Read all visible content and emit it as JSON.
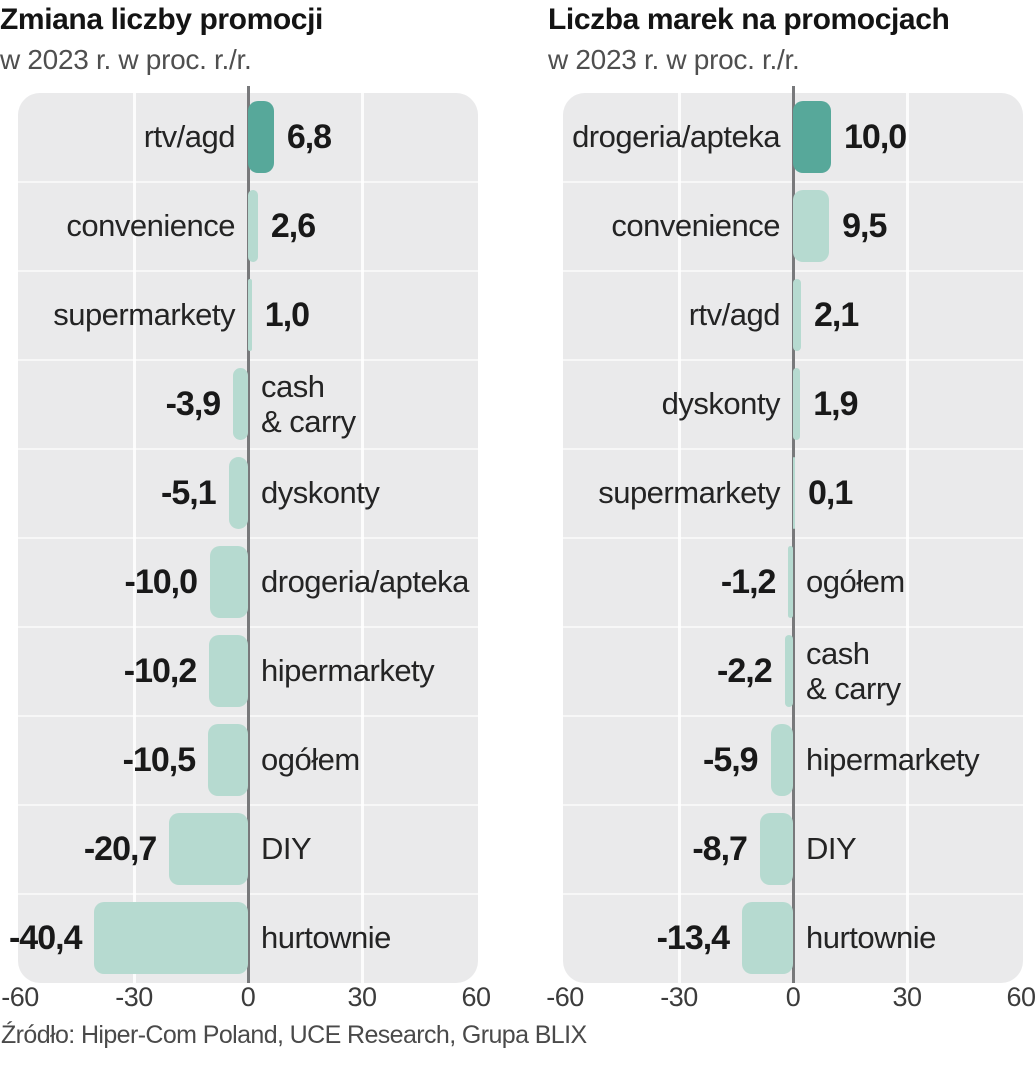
{
  "source_note": "Źródło: Hiper-Com Poland, UCE Research, Grupa BLIX",
  "colors": {
    "bar_highlight": "#57a89a",
    "bar_default": "#b6dad0",
    "plot_background": "#eaeaeb",
    "zero_line": "#78797b"
  },
  "chart_data": [
    {
      "type": "bar",
      "orientation": "horizontal",
      "title": "Zmiana liczby promocji",
      "subtitle": "w 2023 r. w proc. r./r.",
      "categories": [
        "rtv/agd",
        "convenience",
        "supermarkety",
        "cash\n& carry",
        "dyskonty",
        "drogeria/apteka",
        "hipermarkety",
        "ogółem",
        "DIY",
        "hurtownie"
      ],
      "values": [
        6.8,
        2.6,
        1.0,
        -3.9,
        -5.1,
        -10.0,
        -10.2,
        -10.5,
        -20.7,
        -40.4
      ],
      "value_labels": [
        "6,8",
        "2,6",
        "1,0",
        "-3,9",
        "-5,1",
        "-10,0",
        "-10,2",
        "-10,5",
        "-20,7",
        "-40,4"
      ],
      "highlight_index": 0,
      "xlim": [
        -60,
        60
      ],
      "xticks": [
        -60,
        -30,
        0,
        30,
        60
      ],
      "xtick_labels": [
        "-60",
        "-30",
        "0",
        "30",
        "60"
      ],
      "grid": true,
      "legend": "none"
    },
    {
      "type": "bar",
      "orientation": "horizontal",
      "title": "Liczba marek na promocjach",
      "subtitle": "w 2023 r. w proc. r./r.",
      "categories": [
        "drogeria/apteka",
        "convenience",
        "rtv/agd",
        "dyskonty",
        "supermarkety",
        "ogółem",
        "cash\n& carry",
        "hipermarkety",
        "DIY",
        "hurtownie"
      ],
      "values": [
        10.0,
        9.5,
        2.1,
        1.9,
        0.1,
        -1.2,
        -2.2,
        -5.9,
        -8.7,
        -13.4
      ],
      "value_labels": [
        "10,0",
        "9,5",
        "2,1",
        "1,9",
        "0,1",
        "-1,2",
        "-2,2",
        "-5,9",
        "-8,7",
        "-13,4"
      ],
      "highlight_index": 0,
      "xlim": [
        -60,
        60
      ],
      "xticks": [
        -60,
        -30,
        0,
        30,
        60
      ],
      "xtick_labels": [
        "-60",
        "-30",
        "0",
        "30",
        "60"
      ],
      "grid": true,
      "legend": "none"
    }
  ]
}
